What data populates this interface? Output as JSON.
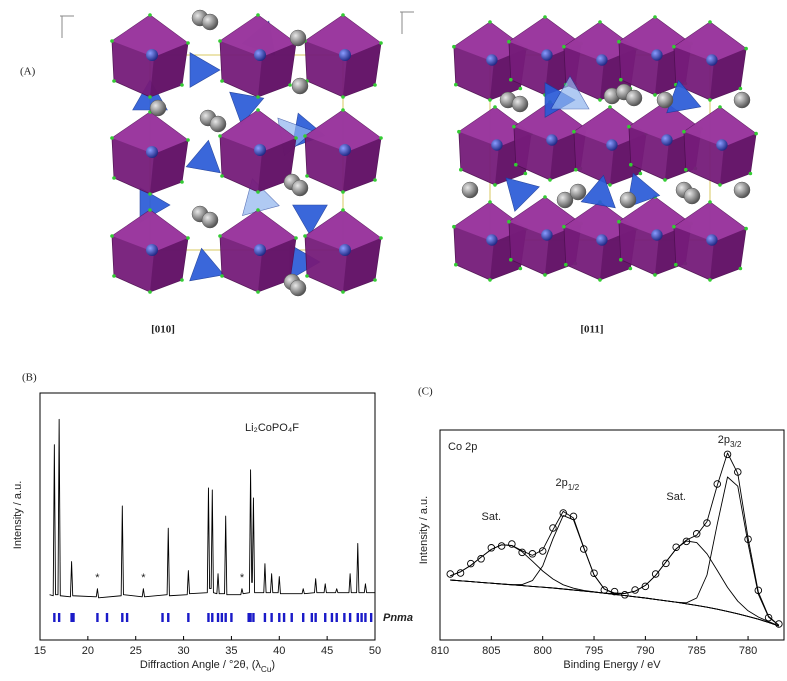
{
  "panel_a": {
    "label": "(A)",
    "views": [
      "[010]",
      "[011]"
    ]
  },
  "chart_data": [
    {
      "type": "line",
      "panel_label": "(B)",
      "title": "Li₂CoPO₄F",
      "x_label": [
        "Diffraction Angle / °2θ, (λ",
        "Cu",
        ")"
      ],
      "y_label": "Intensity / a.u.",
      "xlim": [
        15,
        50
      ],
      "xticks": [
        15,
        20,
        25,
        30,
        35,
        40,
        45,
        50
      ],
      "ylim": [
        -20,
        100
      ],
      "x": [
        16.0,
        16.38,
        16.5,
        16.62,
        16.88,
        17.0,
        17.12,
        18.18,
        18.3,
        18.42,
        20.88,
        21.0,
        21.12,
        23.48,
        23.6,
        23.72,
        25.68,
        25.8,
        25.92,
        28.28,
        28.4,
        28.52,
        30.38,
        30.5,
        30.62,
        32.48,
        32.6,
        32.72,
        32.88,
        33.0,
        33.12,
        33.48,
        33.6,
        33.72,
        34.28,
        34.4,
        34.52,
        35.98,
        36.1,
        36.22,
        36.88,
        37.0,
        37.12,
        37.18,
        37.3,
        37.42,
        38.38,
        38.5,
        38.62,
        39.08,
        39.2,
        39.32,
        39.88,
        40.0,
        40.12,
        42.38,
        42.5,
        42.62,
        43.68,
        43.8,
        43.92,
        44.68,
        44.8,
        44.92,
        45.88,
        46.0,
        46.12,
        47.28,
        47.4,
        47.52,
        48.08,
        48.2,
        48.32,
        48.88,
        49.0,
        49.12,
        50.0
      ],
      "series": [
        {
          "color": "#000000",
          "values": [
            2,
            1.5,
            74.9,
            2,
            2,
            87.2,
            1.5,
            1,
            18.1,
            1.5,
            1,
            4.9,
            0.5,
            1.5,
            45.1,
            2,
            1,
            4.9,
            1,
            2,
            34.3,
            1.5,
            2,
            13.7,
            2.5,
            3,
            53.9,
            5,
            5,
            52.9,
            3,
            2.5,
            12.2,
            2.5,
            2.5,
            40.2,
            2,
            2,
            4.9,
            2.5,
            3,
            62.7,
            8,
            8,
            49,
            3,
            3,
            17.1,
            3,
            3,
            12.2,
            3,
            3,
            10.8,
            2.5,
            2.5,
            4.9,
            2.5,
            3,
            9.8,
            3,
            3,
            7.3,
            3,
            3,
            4.9,
            3,
            3,
            12.2,
            3,
            3,
            26.9,
            3,
            3,
            7.3,
            3,
            3
          ]
        }
      ],
      "reflections": {
        "name": "Pnma",
        "color": "#1a1ac8",
        "x": [
          16.5,
          17.0,
          18.3,
          18.5,
          21.0,
          22.0,
          23.6,
          24.1,
          27.8,
          28.4,
          30.5,
          32.6,
          33.0,
          33.6,
          34.0,
          34.4,
          35.0,
          36.8,
          37.0,
          37.3,
          38.5,
          39.2,
          40.0,
          40.5,
          41.3,
          42.5,
          43.4,
          43.8,
          44.8,
          45.5,
          46.0,
          46.8,
          47.4,
          48.2,
          48.6,
          49.0,
          49.6
        ]
      },
      "annotations": [
        {
          "text": "*",
          "x": 21.0,
          "y": 10
        },
        {
          "text": "*",
          "x": 25.8,
          "y": 10
        },
        {
          "text": "*",
          "x": 36.1,
          "y": 10
        }
      ]
    },
    {
      "type": "line",
      "panel_label": "(C)",
      "title": "Co 2p",
      "x_label": "Binding Energy / eV",
      "y_label": "Intensity / a.u.",
      "xlim": [
        810,
        776.5
      ],
      "xticks": [
        810,
        805,
        800,
        795,
        790,
        785,
        780
      ],
      "ylim": [
        0,
        105
      ],
      "x": [
        809,
        808,
        807,
        806,
        805,
        804,
        803,
        802,
        801,
        800,
        799,
        798,
        797,
        796,
        795,
        794,
        793,
        792,
        791,
        790,
        789,
        788,
        787,
        786,
        785,
        784,
        783,
        782,
        781,
        780,
        779,
        778,
        777
      ],
      "series": [
        {
          "color": "#000000",
          "marker": "circle",
          "values": [
            33,
            33.5,
            38.2,
            40.6,
            46.1,
            47,
            48,
            43.8,
            43.1,
            44.5,
            56,
            63.5,
            61.8,
            45.5,
            33.4,
            25,
            24.2,
            22.6,
            25,
            26.8,
            33,
            38.3,
            46.4,
            49.3,
            53.1,
            58.5,
            78,
            92.8,
            84,
            50.4,
            24.8,
            11.2,
            8
          ]
        },
        {
          "color": "#000000",
          "values": [
            32.1,
            34.1,
            37.3,
            41.4,
            45.3,
            47.6,
            47.3,
            44.6,
            42.3,
            45.1,
            55.1,
            64.3,
            61,
            46.3,
            32.6,
            25.5,
            23.5,
            23.3,
            24.4,
            27.3,
            32.3,
            39,
            45.6,
            50,
            52.4,
            59.2,
            77.3,
            93.5,
            83.2,
            51,
            24,
            11.8,
            7.4
          ]
        },
        {
          "color": "#000000",
          "values": [
            32.1,
            34.1,
            37.3,
            41.4,
            45.3,
            47.6,
            47.2,
            44.1,
            39.4,
            34.5,
            30.5,
            27.6,
            25.9,
            24.8,
            24.1,
            23.4,
            22.8,
            22.2,
            21.6,
            21,
            20.3,
            19.6,
            18.9,
            18.1,
            17.3,
            16.4,
            15.4,
            14.3,
            13.1,
            11.8,
            10.4,
            8.8,
            7
          ]
        },
        {
          "color": "#000000",
          "values": [
            30,
            29.6,
            29.2,
            28.8,
            28.4,
            28,
            27.7,
            27.7,
            29.7,
            37,
            50.6,
            62.2,
            60.1,
            46,
            32.5,
            25.5,
            23.1,
            22.2,
            21.6,
            21,
            20.3,
            19.6,
            18.9,
            18.1,
            17.3,
            16.4,
            15.4,
            14.3,
            13.1,
            11.8,
            10.4,
            8.8,
            7
          ]
        },
        {
          "color": "#000000",
          "values": [
            30,
            29.6,
            29.2,
            28.8,
            28.4,
            28,
            27.6,
            27.2,
            26.8,
            26.4,
            26,
            25.5,
            25,
            24.5,
            24,
            23.4,
            23.2,
            23.3,
            24.4,
            27.3,
            32.3,
            39,
            45.6,
            49.5,
            48.7,
            43.1,
            34.8,
            26.3,
            19.4,
            14.6,
            11.5,
            9.2,
            7.1
          ]
        },
        {
          "color": "#000000",
          "values": [
            30,
            29.6,
            29.2,
            28.8,
            28.4,
            28,
            27.6,
            27.2,
            26.8,
            26.4,
            26,
            25.5,
            25,
            24.5,
            24,
            23.4,
            22.8,
            22.2,
            21.6,
            21,
            20.3,
            19.6,
            18.9,
            18.6,
            21,
            32.5,
            57.9,
            81.5,
            76.9,
            48.2,
            22.9,
            11.4,
            7.3
          ]
        },
        {
          "color": "#000000",
          "values": [
            30,
            29.6,
            29.2,
            28.8,
            28.4,
            28,
            27.6,
            27.2,
            26.8,
            26.4,
            26,
            25.5,
            25,
            24.5,
            24,
            23.4,
            22.8,
            22.2,
            21.6,
            21,
            20.3,
            19.6,
            18.9,
            18.1,
            17.3,
            16.4,
            15.4,
            14.3,
            13.1,
            11.8,
            10.4,
            8.8,
            7
          ]
        }
      ],
      "annotations": [
        {
          "text": "Sat.",
          "x": 805,
          "y": 61.5
        },
        {
          "text": [
            "2p",
            "1/2"
          ],
          "x": 797.6,
          "y": 78.5
        },
        {
          "text": "Sat.",
          "x": 787,
          "y": 71.5
        },
        {
          "text": [
            "2p",
            "3/2"
          ],
          "x": 781.8,
          "y": 100
        }
      ]
    }
  ]
}
